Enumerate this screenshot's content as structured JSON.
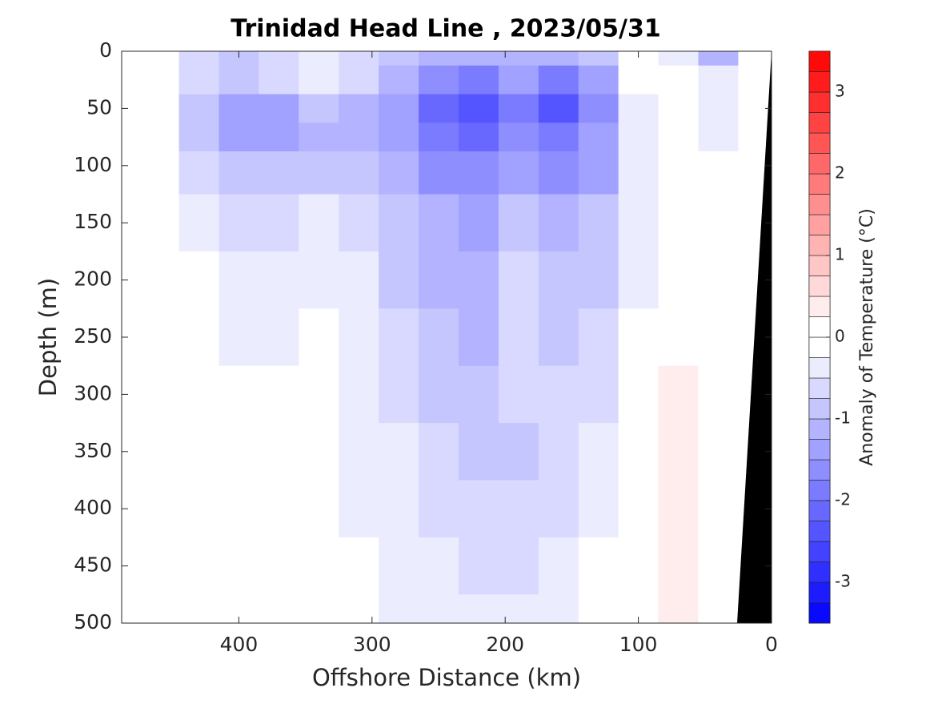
{
  "chart_data": {
    "type": "contour",
    "title": "Trinidad Head Line , 2023/05/31",
    "xlabel": "Offshore Distance (km)",
    "ylabel": "Depth (m)",
    "colorbar_label": "Anomaly of Temperature (°C)",
    "x": [
      430,
      400,
      370,
      340,
      310,
      280,
      250,
      220,
      190,
      160,
      130,
      100,
      70,
      40,
      10
    ],
    "y": [
      0,
      25,
      50,
      75,
      100,
      150,
      200,
      250,
      300,
      350,
      400,
      450,
      500
    ],
    "z": [
      [
        -0.6,
        -0.8,
        -0.6,
        -0.5,
        -0.6,
        -0.9,
        -1.1,
        -1.2,
        -1.1,
        -1.2,
        -0.9,
        0.1,
        -0.4,
        -1.2,
        0.0
      ],
      [
        -0.7,
        -1.0,
        -0.7,
        -0.3,
        -0.7,
        -1.2,
        -1.6,
        -1.8,
        -1.5,
        -1.8,
        -1.4,
        0.1,
        -0.1,
        -0.5,
        0.0
      ],
      [
        -0.8,
        -1.5,
        -1.3,
        -0.9,
        -1.1,
        -1.5,
        -2.2,
        -2.5,
        -1.8,
        -2.4,
        -1.6,
        -0.5,
        0.2,
        -0.4,
        0.0
      ],
      [
        -0.8,
        -1.3,
        -1.3,
        -1.1,
        -1.1,
        -1.4,
        -2.0,
        -2.1,
        -1.7,
        -1.9,
        -1.5,
        -0.4,
        -0.2,
        -0.3,
        0.0
      ],
      [
        -0.7,
        -1.0,
        -1.0,
        -0.9,
        -0.9,
        -1.1,
        -1.6,
        -1.7,
        -1.5,
        -1.6,
        -1.3,
        -0.3,
        -0.2,
        -0.2,
        0.0
      ],
      [
        -0.3,
        -0.6,
        -0.6,
        -0.5,
        -0.6,
        -0.8,
        -1.2,
        -1.3,
        -1.0,
        -1.1,
        -1.0,
        -0.3,
        -0.1,
        -0.1,
        0.1
      ],
      [
        -0.1,
        -0.5,
        -0.5,
        -0.4,
        -0.5,
        -0.8,
        -1.1,
        -1.2,
        -0.7,
        -1.0,
        -1.0,
        -0.3,
        0.0,
        0.0,
        0.1
      ],
      [
        -0.1,
        -0.5,
        -0.3,
        -0.2,
        -0.3,
        -0.7,
        -1.0,
        -1.1,
        -0.6,
        -0.8,
        -0.7,
        -0.2,
        0.1,
        0.0,
        0.1
      ],
      [
        0.0,
        -0.2,
        -0.1,
        -0.1,
        -0.3,
        -0.6,
        -0.8,
        -0.9,
        -0.7,
        -0.6,
        -0.6,
        -0.1,
        0.3,
        0.0,
        0.1
      ],
      [
        0.0,
        -0.1,
        0.0,
        0.0,
        -0.3,
        -0.5,
        -0.7,
        -0.8,
        -0.8,
        -0.7,
        -0.5,
        -0.1,
        0.3,
        0.0,
        0.1
      ],
      [
        0.0,
        0.0,
        0.0,
        0.0,
        -0.3,
        -0.4,
        -0.6,
        -0.6,
        -0.7,
        -0.6,
        -0.3,
        0.0,
        0.3,
        0.1,
        0.1
      ],
      [
        0.0,
        0.0,
        0.0,
        0.0,
        -0.2,
        -0.3,
        -0.5,
        -0.6,
        -0.7,
        -0.5,
        -0.2,
        0.0,
        0.3,
        0.1,
        0.1
      ],
      [
        0.0,
        0.0,
        0.0,
        0.0,
        -0.1,
        -0.3,
        -0.4,
        -0.4,
        -0.5,
        -0.3,
        -0.2,
        0.0,
        0.3,
        0.1,
        0.1
      ]
    ],
    "xlim": [
      488,
      0
    ],
    "ylim": [
      0,
      500
    ],
    "y_inverted": true,
    "xticks": [
      400,
      300,
      200,
      100,
      0
    ],
    "yticks": [
      0,
      50,
      100,
      150,
      200,
      250,
      300,
      350,
      400,
      450,
      500
    ],
    "levels": [
      -3.5,
      -3.25,
      -3,
      -2.75,
      -2.5,
      -2.25,
      -2,
      -1.75,
      -1.5,
      -1.25,
      -1,
      -0.75,
      -0.5,
      -0.25,
      0,
      0.25,
      0.5,
      0.75,
      1,
      1.25,
      1.5,
      1.75,
      2,
      2.25,
      2.5,
      2.75,
      3,
      3.25,
      3.5
    ],
    "clim": [
      -3.5,
      3.5
    ],
    "cticks": [
      -3,
      -2,
      -1,
      0,
      1,
      2,
      3
    ],
    "colormap": [
      "#0000ff",
      "#ffffff",
      "#ff0000"
    ]
  }
}
